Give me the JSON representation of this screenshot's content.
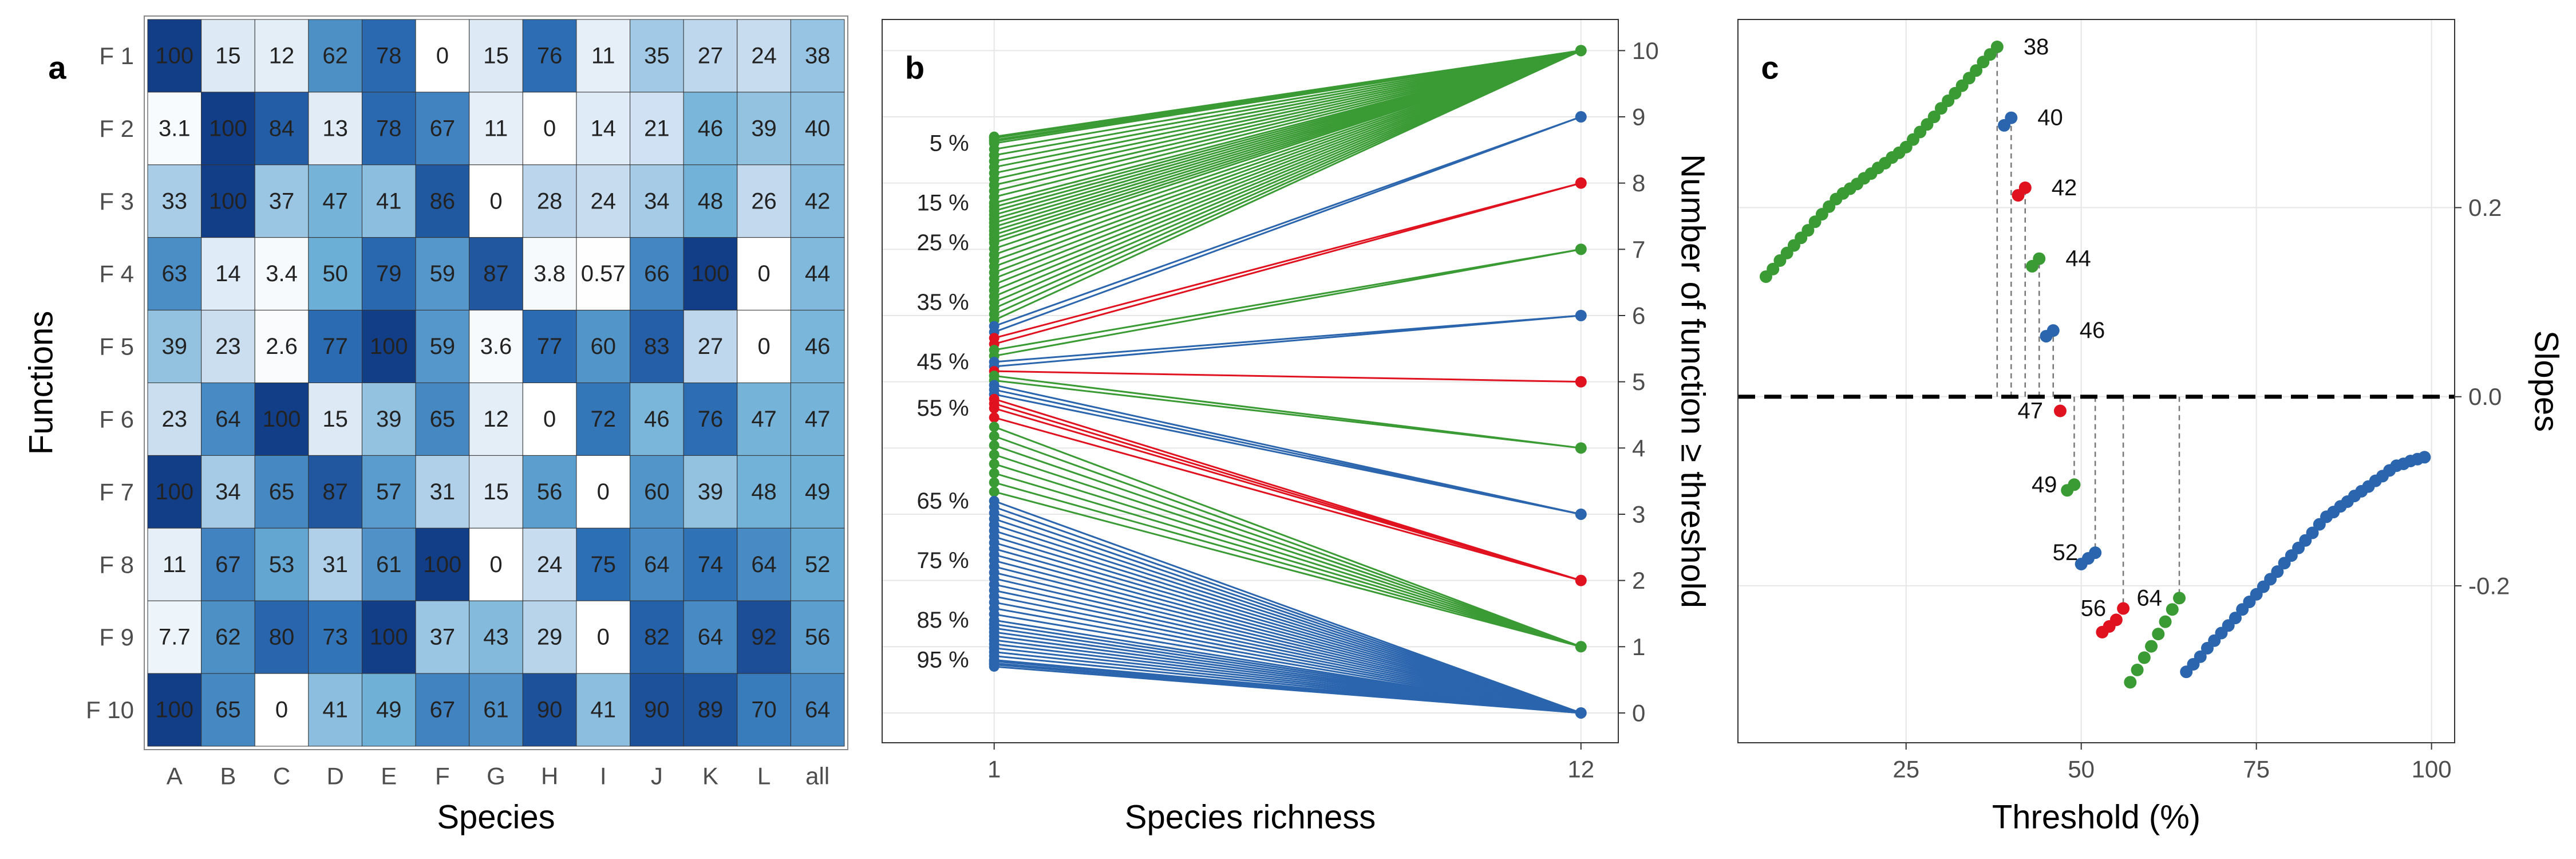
{
  "chart_data": [
    {
      "type": "heatmap",
      "panel_label": "a",
      "x_label": "Species",
      "y_label": "Functions",
      "categories": [
        "A",
        "B",
        "C",
        "D",
        "E",
        "F",
        "G",
        "H",
        "I",
        "J",
        "K",
        "L",
        "all"
      ],
      "rows": [
        "F 1",
        "F 2",
        "F 3",
        "F 4",
        "F 5",
        "F 6",
        "F 7",
        "F 8",
        "F 9",
        "F 10"
      ],
      "values": [
        [
          100,
          15,
          12,
          62,
          78,
          0,
          15,
          76,
          11,
          35,
          27,
          24,
          38
        ],
        [
          3.1,
          100,
          84,
          13,
          78,
          67,
          11,
          0,
          14,
          21,
          46,
          39,
          40
        ],
        [
          33,
          100,
          37,
          47,
          41,
          86,
          0,
          28,
          24,
          34,
          48,
          26,
          42
        ],
        [
          63,
          14,
          3.4,
          50,
          79,
          59,
          87,
          3.8,
          0.57,
          66,
          100,
          0,
          44
        ],
        [
          39,
          23,
          2.6,
          77,
          100,
          59,
          3.6,
          77,
          60,
          83,
          27,
          0,
          46
        ],
        [
          23,
          64,
          100,
          15,
          39,
          65,
          12,
          0,
          72,
          46,
          76,
          47,
          47
        ],
        [
          100,
          34,
          65,
          87,
          57,
          31,
          15,
          56,
          0,
          60,
          39,
          48,
          49
        ],
        [
          11,
          67,
          53,
          31,
          61,
          100,
          0,
          24,
          75,
          64,
          74,
          64,
          52
        ],
        [
          7.7,
          62,
          80,
          73,
          100,
          37,
          43,
          29,
          0,
          82,
          64,
          92,
          56
        ],
        [
          100,
          65,
          0,
          41,
          49,
          67,
          61,
          90,
          41,
          90,
          89,
          70,
          64
        ]
      ],
      "zlim": [
        0,
        100
      ],
      "colorscale": [
        "#ffffff",
        "#c6dbef",
        "#6baed6",
        "#2d6fb5",
        "#123e88"
      ]
    },
    {
      "type": "slope",
      "panel_label": "b",
      "x_label": "Species richness",
      "y_label": "Number of function ≥ threshold",
      "x": [
        1,
        12
      ],
      "xlim": [
        -1.1,
        12.7
      ],
      "xticks": [
        1,
        12
      ],
      "ylim": [
        -0.45,
        10.47
      ],
      "yticks": [
        0,
        1,
        2,
        3,
        4,
        5,
        6,
        7,
        8,
        9,
        10
      ],
      "y_axis_side": "right",
      "grid": true,
      "series": [
        {
          "color": "#3a9b35",
          "end": 10,
          "thresholds": [
            1,
            2,
            3,
            4,
            5,
            6,
            7,
            8,
            9,
            10,
            11,
            12,
            13,
            14,
            15,
            16,
            17,
            18,
            19,
            20,
            21,
            22,
            23,
            24,
            25,
            26,
            27,
            28,
            29,
            30,
            31,
            32,
            33,
            34,
            35,
            36,
            37,
            38
          ],
          "start": [
            8.7,
            8.68,
            8.65,
            8.63,
            8.6,
            8.51,
            8.42,
            8.33,
            8.24,
            8.15,
            8.06,
            7.97,
            7.88,
            7.79,
            7.7,
            7.64,
            7.58,
            7.52,
            7.46,
            7.4,
            7.34,
            7.28,
            7.22,
            7.16,
            7.1,
            7.01,
            6.92,
            6.83,
            6.74,
            6.65,
            6.56,
            6.47,
            6.38,
            6.29,
            6.2,
            6.11,
            6.02,
            5.93
          ]
        },
        {
          "color": "#2b65ad",
          "end": 9,
          "thresholds": [
            39,
            40
          ],
          "start": [
            5.84,
            5.75
          ]
        },
        {
          "color": "#e0121f",
          "end": 8,
          "thresholds": [
            41,
            42
          ],
          "start": [
            5.66,
            5.57
          ]
        },
        {
          "color": "#3a9b35",
          "end": 7,
          "thresholds": [
            43,
            44
          ],
          "start": [
            5.48,
            5.39
          ]
        },
        {
          "color": "#2b65ad",
          "end": 6,
          "thresholds": [
            45,
            46
          ],
          "start": [
            5.3,
            5.23
          ]
        },
        {
          "color": "#e0121f",
          "end": 5,
          "thresholds": [
            47
          ],
          "start": [
            5.16
          ]
        },
        {
          "color": "#3a9b35",
          "end": 4,
          "thresholds": [
            48,
            49
          ],
          "start": [
            5.09,
            5.02
          ]
        },
        {
          "color": "#2b65ad",
          "end": 3,
          "thresholds": [
            50,
            51,
            52
          ],
          "start": [
            4.95,
            4.88,
            4.81
          ]
        },
        {
          "color": "#e0121f",
          "end": 2,
          "thresholds": [
            53,
            54,
            55,
            56
          ],
          "start": [
            4.74,
            4.67,
            4.6,
            4.46
          ]
        },
        {
          "color": "#3a9b35",
          "end": 1,
          "thresholds": [
            57,
            58,
            59,
            60,
            61,
            62,
            63,
            64
          ],
          "start": [
            4.32,
            4.18,
            4.04,
            3.9,
            3.76,
            3.62,
            3.48,
            3.34
          ]
        },
        {
          "color": "#2b65ad",
          "end": 0,
          "thresholds": [
            65,
            66,
            67,
            68,
            69,
            70,
            71,
            72,
            73,
            74,
            75,
            76,
            77,
            78,
            79,
            80,
            81,
            82,
            83,
            84,
            85,
            86,
            87,
            88,
            89,
            90,
            91,
            92,
            93,
            94,
            95,
            96,
            97,
            98,
            99
          ],
          "start": [
            3.2,
            3.11,
            3.02,
            2.93,
            2.84,
            2.75,
            2.66,
            2.57,
            2.48,
            2.39,
            2.3,
            2.21,
            2.12,
            2.03,
            1.94,
            1.85,
            1.76,
            1.67,
            1.58,
            1.49,
            1.4,
            1.34,
            1.28,
            1.22,
            1.16,
            1.1,
            1.04,
            0.98,
            0.92,
            0.86,
            0.8,
            0.78,
            0.75,
            0.73,
            0.7
          ]
        }
      ],
      "threshold_labels": [
        {
          "value": 5,
          "label": "5 %"
        },
        {
          "value": 15,
          "label": "15 %"
        },
        {
          "value": 25,
          "label": "25 %"
        },
        {
          "value": 35,
          "label": "35 %"
        },
        {
          "value": 45,
          "label": "45 %"
        },
        {
          "value": 55,
          "label": "55 %"
        },
        {
          "value": 65,
          "label": "65 %"
        },
        {
          "value": 75,
          "label": "75 %"
        },
        {
          "value": 85,
          "label": "85 %"
        },
        {
          "value": 95,
          "label": "95 %"
        }
      ]
    },
    {
      "type": "scatter",
      "panel_label": "c",
      "x_label": "Threshold (%)",
      "y_label": "Slopes",
      "xlim": [
        1,
        103.3
      ],
      "xticks": [
        25,
        50,
        75,
        100
      ],
      "ylim": [
        -0.366,
        0.399
      ],
      "yticks": [
        -0.2,
        {
          "value": 0,
          "label": "0.0"
        },
        0.2
      ],
      "y_axis_side": "right",
      "grid": true,
      "zero_line": true,
      "series": [
        {
          "color": "#3a9b35",
          "x": [
            5,
            6,
            7,
            8,
            9,
            10,
            11,
            12,
            13,
            14,
            15,
            16,
            17,
            18,
            19,
            20,
            21,
            22,
            23,
            24,
            25,
            26,
            27,
            28,
            29,
            30,
            31,
            32,
            33,
            34,
            35,
            36,
            37,
            38
          ],
          "values": [
            0.127,
            0.135,
            0.144,
            0.152,
            0.16,
            0.168,
            0.176,
            0.185,
            0.193,
            0.201,
            0.209,
            0.215,
            0.22,
            0.225,
            0.231,
            0.236,
            0.242,
            0.247,
            0.253,
            0.258,
            0.264,
            0.272,
            0.28,
            0.288,
            0.296,
            0.305,
            0.313,
            0.321,
            0.329,
            0.337,
            0.345,
            0.354,
            0.362,
            0.37
          ]
        },
        {
          "color": "#2b65ad",
          "x": [
            39,
            40
          ],
          "values": [
            0.287,
            0.295
          ]
        },
        {
          "color": "#e0121f",
          "x": [
            41,
            42
          ],
          "values": [
            0.213,
            0.221
          ]
        },
        {
          "color": "#3a9b35",
          "x": [
            43,
            44
          ],
          "values": [
            0.138,
            0.146
          ]
        },
        {
          "color": "#2b65ad",
          "x": [
            45,
            46
          ],
          "values": [
            0.064,
            0.07
          ]
        },
        {
          "color": "#e0121f",
          "x": [
            47
          ],
          "values": [
            -0.015
          ]
        },
        {
          "color": "#3a9b35",
          "x": [
            48,
            49
          ],
          "values": [
            -0.099,
            -0.093
          ]
        },
        {
          "color": "#2b65ad",
          "x": [
            50,
            51,
            52
          ],
          "values": [
            -0.177,
            -0.171,
            -0.165
          ]
        },
        {
          "color": "#e0121f",
          "x": [
            53,
            54,
            55,
            56
          ],
          "values": [
            -0.249,
            -0.243,
            -0.236,
            -0.224
          ]
        },
        {
          "color": "#3a9b35",
          "x": [
            57,
            58,
            59,
            60,
            61,
            62,
            63,
            64
          ],
          "values": [
            -0.302,
            -0.289,
            -0.276,
            -0.264,
            -0.251,
            -0.238,
            -0.225,
            -0.213
          ]
        },
        {
          "color": "#2b65ad",
          "x": [
            65,
            66,
            67,
            68,
            69,
            70,
            71,
            72,
            73,
            74,
            75,
            76,
            77,
            78,
            79,
            80,
            81,
            82,
            83,
            84,
            85,
            86,
            87,
            88,
            89,
            90,
            91,
            92,
            93,
            94,
            95,
            96,
            97,
            98,
            99
          ],
          "values": [
            -0.291,
            -0.283,
            -0.275,
            -0.266,
            -0.258,
            -0.25,
            -0.242,
            -0.234,
            -0.225,
            -0.217,
            -0.209,
            -0.201,
            -0.193,
            -0.185,
            -0.176,
            -0.168,
            -0.16,
            -0.152,
            -0.144,
            -0.135,
            -0.127,
            -0.122,
            -0.116,
            -0.111,
            -0.105,
            -0.1,
            -0.095,
            -0.089,
            -0.084,
            -0.078,
            -0.073,
            -0.071,
            -0.068,
            -0.066,
            -0.064
          ]
        }
      ],
      "annotations": [
        38,
        40,
        42,
        44,
        46,
        47,
        49,
        52,
        56,
        64
      ]
    }
  ]
}
